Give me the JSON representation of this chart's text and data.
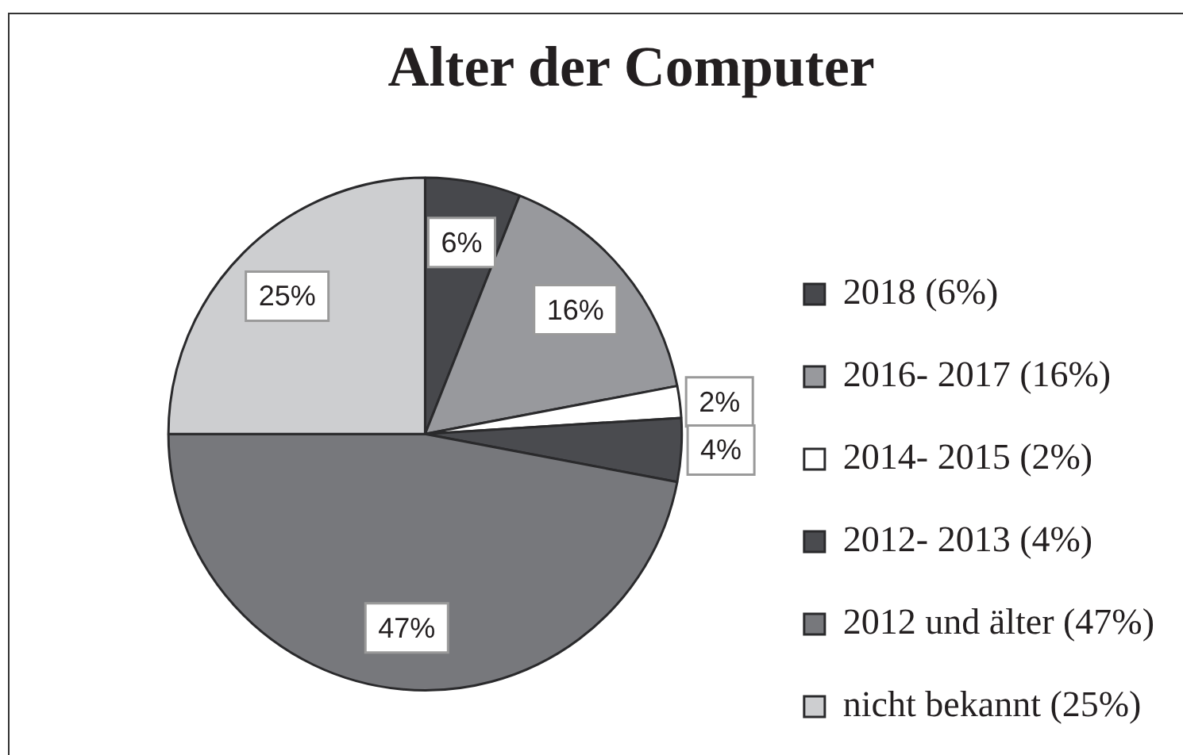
{
  "chart_data": {
    "type": "pie",
    "title": "Alter der Computer",
    "categories": [
      "2018 (6%)",
      "2016- 2017 (16%)",
      "2014- 2015 (2%)",
      "2012- 2013 (4%)",
      "2012 und älter (47%)",
      "nicht bekannt (25%)"
    ],
    "values": [
      6,
      16,
      2,
      4,
      47,
      25
    ],
    "colors": [
      "#47484c",
      "#98999d",
      "#ffffff",
      "#4a4b4f",
      "#77787c",
      "#cdced0"
    ],
    "value_labels": [
      "6%",
      "16%",
      "2%",
      "4%",
      "47%",
      "25%"
    ],
    "legend": "right"
  }
}
